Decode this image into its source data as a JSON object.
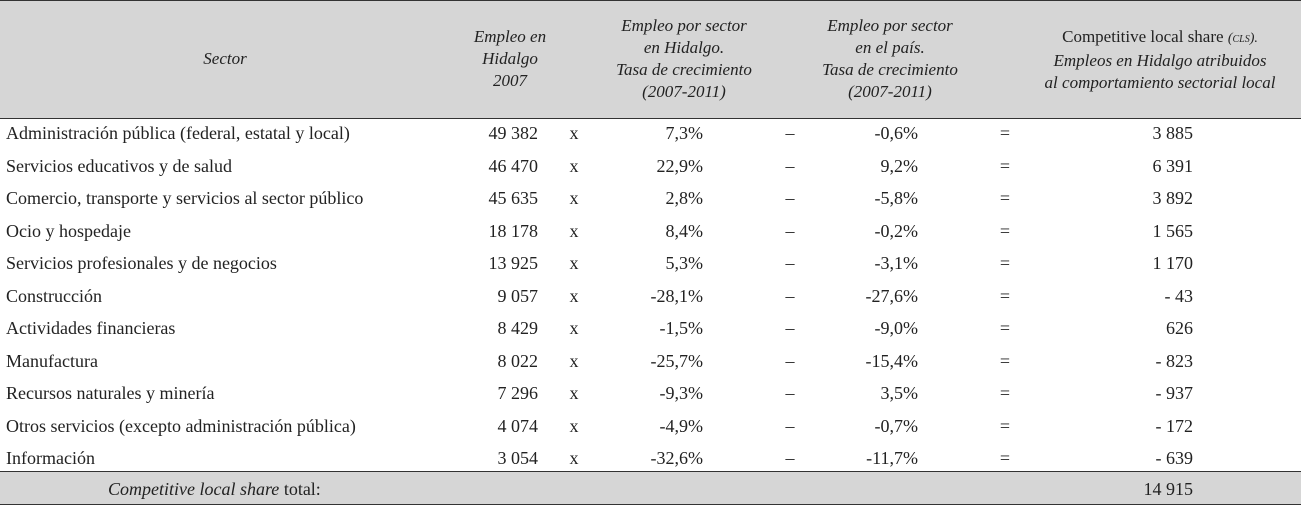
{
  "table": {
    "header": [
      {
        "lines": [
          "Sector"
        ]
      },
      {
        "lines": [
          "Empleo en",
          "Hidalgo",
          "2007"
        ]
      },
      {
        "lines": [
          "Empleo por sector",
          "en Hidalgo.",
          "Tasa de crecimiento",
          "(2007-2011)"
        ]
      },
      {
        "lines": [
          "Empleo por sector",
          "en el país.",
          "Tasa de crecimiento",
          "(2007-2011)"
        ]
      },
      {
        "lines": [
          "Competitive local share",
          "Empleos en Hidalgo atribuidos",
          "al comportamiento sectorial local"
        ],
        "abbr": "(cls)."
      }
    ],
    "rows": [
      [
        "Administración pública (federal, estatal y local)",
        "49 382",
        "x",
        "7,3%",
        "–",
        "-0,6%",
        "=",
        "3 885"
      ],
      [
        "Servicios educativos y de salud",
        "46 470",
        "x",
        "22,9%",
        "–",
        "9,2%",
        "=",
        "6 391"
      ],
      [
        "Comercio, transporte y servicios al sector público",
        "45 635",
        "x",
        "2,8%",
        "–",
        "-5,8%",
        "=",
        "3 892"
      ],
      [
        "Ocio y hospedaje",
        "18 178",
        "x",
        "8,4%",
        "–",
        "-0,2%",
        "=",
        "1 565"
      ],
      [
        "Servicios profesionales y de negocios",
        "13 925",
        "x",
        "5,3%",
        "–",
        "-3,1%",
        "=",
        "1 170"
      ],
      [
        "Construcción",
        "9 057",
        "x",
        "-28,1%",
        "–",
        "-27,6%",
        "=",
        "- 43"
      ],
      [
        "Actividades financieras",
        "8 429",
        "x",
        "-1,5%",
        "–",
        "-9,0%",
        "=",
        "626"
      ],
      [
        "Manufactura",
        "8 022",
        "x",
        "-25,7%",
        "–",
        "-15,4%",
        "=",
        "- 823"
      ],
      [
        "Recursos naturales y minería",
        "7 296",
        "x",
        "-9,3%",
        "–",
        "3,5%",
        "=",
        "- 937"
      ],
      [
        "Otros servicios (excepto administración pública)",
        "4 074",
        "x",
        "-4,9%",
        "–",
        "-0,7%",
        "=",
        "- 172"
      ],
      [
        "Información",
        "3 054",
        "x",
        "-32,6%",
        "–",
        "-11,7%",
        "=",
        "- 639"
      ]
    ],
    "footer": {
      "label_italic": "Competitive local share",
      "label_rest": "total:",
      "value": "14 915"
    }
  }
}
